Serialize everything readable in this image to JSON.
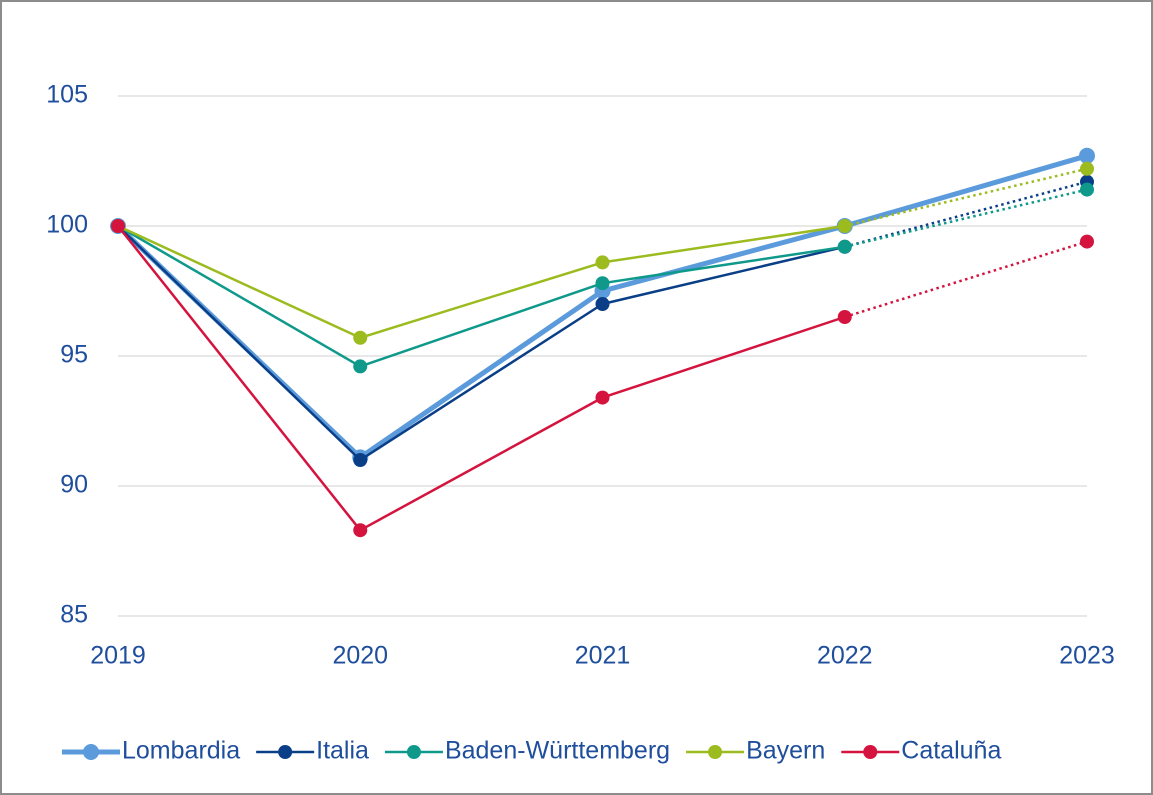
{
  "chart_data": {
    "type": "line",
    "categories": [
      "2019",
      "2020",
      "2021",
      "2022",
      "2023"
    ],
    "series": [
      {
        "name": "Lombardia",
        "color": "#5b9bdc",
        "values": [
          100,
          91.1,
          97.5,
          100.0,
          102.7
        ],
        "dotted_last_segment": false,
        "thick": true
      },
      {
        "name": "Italia",
        "color": "#0a3f87",
        "values": [
          100,
          91.0,
          97.0,
          99.2,
          101.7
        ],
        "dotted_last_segment": true,
        "thick": false
      },
      {
        "name": "Baden-Württemberg",
        "color": "#0f998b",
        "values": [
          100,
          94.6,
          97.8,
          99.2,
          101.4
        ],
        "dotted_last_segment": true,
        "thick": false
      },
      {
        "name": "Bayern",
        "color": "#9bbb1e",
        "values": [
          100,
          95.7,
          98.6,
          100.0,
          102.2
        ],
        "dotted_last_segment": true,
        "thick": false
      },
      {
        "name": "Cataluña",
        "color": "#d4143f",
        "values": [
          100,
          88.3,
          93.4,
          96.5,
          99.4
        ],
        "dotted_last_segment": true,
        "thick": false
      }
    ],
    "ylim": [
      85,
      105
    ],
    "yticks": [
      85,
      90,
      95,
      100,
      105
    ],
    "grid": true,
    "legend": "bottom"
  }
}
